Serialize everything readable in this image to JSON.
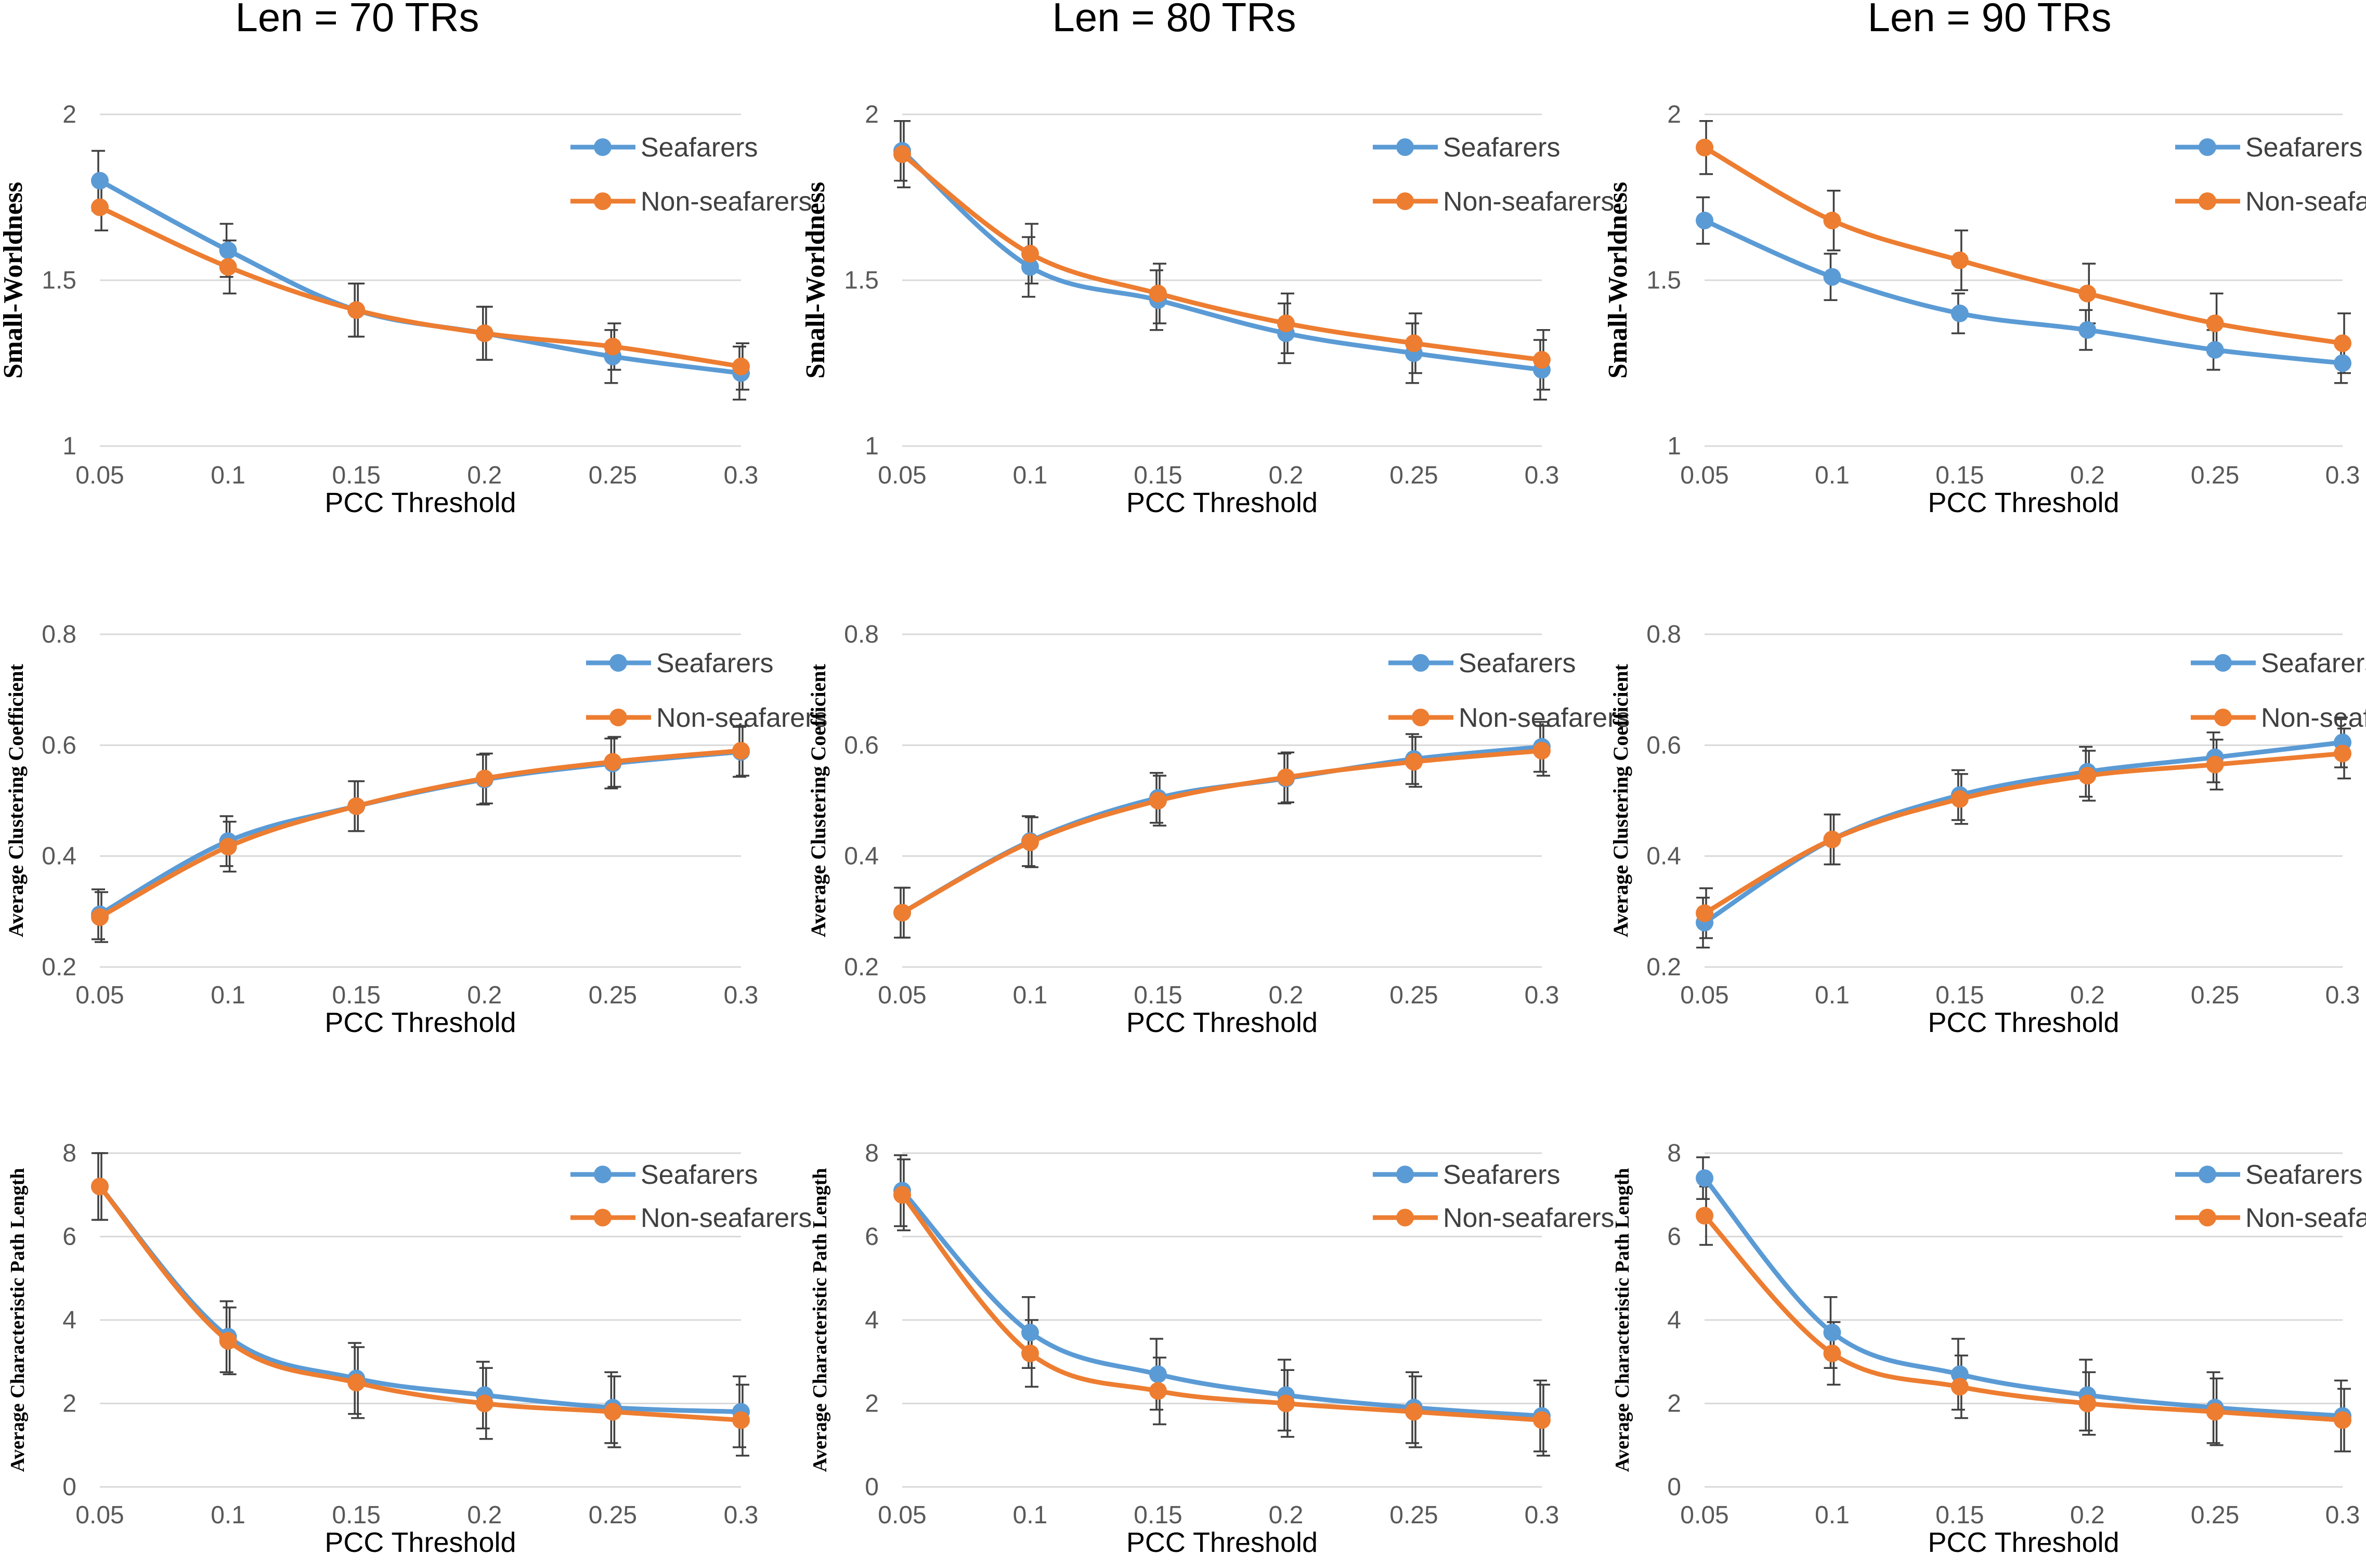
{
  "colors": {
    "seafarers": "#5B9BD5",
    "non_seafarers": "#ED7D31",
    "grid": "#D9D9D9",
    "errorbar": "#404040"
  },
  "column_titles": [
    "Len = 70 TRs",
    "Len = 80 TRs",
    "Len = 90 TRs"
  ],
  "chart_data": [
    {
      "type": "line",
      "title": "Len = 70 TRs",
      "xlabel": "PCC Threshold",
      "ylabel": "Small-Worldness",
      "x": [
        "0.05",
        "0.1",
        "0.15",
        "0.2",
        "0.25",
        "0.3"
      ],
      "ylim": [
        1,
        2
      ],
      "yticks": [
        "1",
        "1.5",
        "2"
      ],
      "grid": true,
      "legend": "top-right",
      "series": [
        {
          "name": "Seafarers",
          "values": [
            1.8,
            1.59,
            1.41,
            1.34,
            1.27,
            1.22
          ],
          "errors": [
            0.09,
            0.08,
            0.08,
            0.08,
            0.08,
            0.08
          ]
        },
        {
          "name": "Non-seafarers",
          "values": [
            1.72,
            1.54,
            1.41,
            1.34,
            1.3,
            1.24
          ],
          "errors": [
            0.07,
            0.08,
            0.08,
            0.08,
            0.07,
            0.07
          ]
        }
      ]
    },
    {
      "type": "line",
      "title": "Len = 80 TRs",
      "xlabel": "PCC Threshold",
      "ylabel": "Small-Worldness",
      "x": [
        "0.05",
        "0.1",
        "0.15",
        "0.2",
        "0.25",
        "0.3"
      ],
      "ylim": [
        1,
        2
      ],
      "yticks": [
        "1",
        "1.5",
        "2"
      ],
      "grid": true,
      "legend": "top-right",
      "series": [
        {
          "name": "Seafarers",
          "values": [
            1.89,
            1.54,
            1.44,
            1.34,
            1.28,
            1.23
          ],
          "errors": [
            0.09,
            0.09,
            0.09,
            0.09,
            0.09,
            0.09
          ]
        },
        {
          "name": "Non-seafarers",
          "values": [
            1.88,
            1.58,
            1.46,
            1.37,
            1.31,
            1.26
          ],
          "errors": [
            0.1,
            0.09,
            0.09,
            0.09,
            0.09,
            0.09
          ]
        }
      ]
    },
    {
      "type": "line",
      "title": "Len = 90 TRs",
      "xlabel": "PCC Threshold",
      "ylabel": "Small-Worldness",
      "x": [
        "0.05",
        "0.1",
        "0.15",
        "0.2",
        "0.25",
        "0.3"
      ],
      "ylim": [
        1,
        2
      ],
      "yticks": [
        "1",
        "1.5",
        "2"
      ],
      "grid": true,
      "legend": "top-right",
      "series": [
        {
          "name": "Seafarers",
          "values": [
            1.68,
            1.51,
            1.4,
            1.35,
            1.29,
            1.25
          ],
          "errors": [
            0.07,
            0.07,
            0.06,
            0.06,
            0.06,
            0.06
          ]
        },
        {
          "name": "Non-seafarers",
          "values": [
            1.9,
            1.68,
            1.56,
            1.46,
            1.37,
            1.31
          ],
          "errors": [
            0.08,
            0.09,
            0.09,
            0.09,
            0.09,
            0.09
          ]
        }
      ]
    },
    {
      "type": "line",
      "title": "Len = 70 TRs",
      "xlabel": "PCC Threshold",
      "ylabel": "Average Clustering Coefficient",
      "x": [
        "0.05",
        "0.1",
        "0.15",
        "0.2",
        "0.25",
        "0.3"
      ],
      "ylim": [
        0.2,
        0.8
      ],
      "yticks": [
        "0.2",
        "0.4",
        "0.6",
        "0.8"
      ],
      "grid": true,
      "legend": "top-right",
      "series": [
        {
          "name": "Seafarers",
          "values": [
            0.295,
            0.427,
            0.49,
            0.538,
            0.567,
            0.588
          ],
          "errors": [
            0.045,
            0.045,
            0.045,
            0.045,
            0.045,
            0.045
          ]
        },
        {
          "name": "Non-seafarers",
          "values": [
            0.29,
            0.417,
            0.49,
            0.54,
            0.57,
            0.59
          ],
          "errors": [
            0.045,
            0.045,
            0.045,
            0.045,
            0.045,
            0.045
          ]
        }
      ]
    },
    {
      "type": "line",
      "title": "Len = 80 TRs",
      "xlabel": "PCC Threshold",
      "ylabel": "Average Clustering Coefficient",
      "x": [
        "0.05",
        "0.1",
        "0.15",
        "0.2",
        "0.25",
        "0.3"
      ],
      "ylim": [
        0.2,
        0.8
      ],
      "yticks": [
        "0.2",
        "0.4",
        "0.6",
        "0.8"
      ],
      "grid": true,
      "legend": "top-right",
      "series": [
        {
          "name": "Seafarers",
          "values": [
            0.298,
            0.427,
            0.505,
            0.54,
            0.575,
            0.597
          ],
          "errors": [
            0.045,
            0.045,
            0.045,
            0.045,
            0.045,
            0.045
          ]
        },
        {
          "name": "Non-seafarers",
          "values": [
            0.298,
            0.425,
            0.5,
            0.542,
            0.57,
            0.59
          ],
          "errors": [
            0.045,
            0.045,
            0.045,
            0.045,
            0.045,
            0.045
          ]
        }
      ]
    },
    {
      "type": "line",
      "title": "Len = 90 TRs",
      "xlabel": "PCC Threshold",
      "ylabel": "Average Clustering Coefficient",
      "x": [
        "0.05",
        "0.1",
        "0.15",
        "0.2",
        "0.25",
        "0.3"
      ],
      "ylim": [
        0.2,
        0.8
      ],
      "yticks": [
        "0.2",
        "0.4",
        "0.6",
        "0.8"
      ],
      "grid": true,
      "legend": "top-right",
      "series": [
        {
          "name": "Seafarers",
          "values": [
            0.28,
            0.43,
            0.51,
            0.552,
            0.578,
            0.605
          ],
          "errors": [
            0.045,
            0.045,
            0.045,
            0.045,
            0.045,
            0.045
          ]
        },
        {
          "name": "Non-seafarers",
          "values": [
            0.297,
            0.43,
            0.503,
            0.545,
            0.565,
            0.585
          ],
          "errors": [
            0.045,
            0.045,
            0.045,
            0.045,
            0.045,
            0.045
          ]
        }
      ]
    },
    {
      "type": "line",
      "title": "Len = 70 TRs",
      "xlabel": "PCC Threshold",
      "ylabel": "Average Characteristic Path Length",
      "x": [
        "0.05",
        "0.1",
        "0.15",
        "0.2",
        "0.25",
        "0.3"
      ],
      "ylim": [
        0,
        8
      ],
      "yticks": [
        "0",
        "2",
        "4",
        "6",
        "8"
      ],
      "grid": true,
      "legend": "top-right",
      "series": [
        {
          "name": "Seafarers",
          "values": [
            7.2,
            3.6,
            2.6,
            2.2,
            1.9,
            1.8
          ],
          "errors": [
            0.8,
            0.85,
            0.85,
            0.8,
            0.85,
            0.85
          ]
        },
        {
          "name": "Non-seafarers",
          "values": [
            7.2,
            3.5,
            2.5,
            2.0,
            1.8,
            1.6
          ],
          "errors": [
            0.8,
            0.8,
            0.85,
            0.85,
            0.85,
            0.85
          ]
        }
      ]
    },
    {
      "type": "line",
      "title": "Len = 80 TRs",
      "xlabel": "PCC Threshold",
      "ylabel": "Average Characteristic Path Length",
      "x": [
        "0.05",
        "0.1",
        "0.15",
        "0.2",
        "0.25",
        "0.3"
      ],
      "ylim": [
        0,
        8
      ],
      "yticks": [
        "0",
        "2",
        "4",
        "6",
        "8"
      ],
      "grid": true,
      "legend": "top-right",
      "series": [
        {
          "name": "Seafarers",
          "values": [
            7.1,
            3.7,
            2.7,
            2.2,
            1.9,
            1.7
          ],
          "errors": [
            0.85,
            0.85,
            0.85,
            0.85,
            0.85,
            0.85
          ]
        },
        {
          "name": "Non-seafarers",
          "values": [
            7.0,
            3.2,
            2.3,
            2.0,
            1.8,
            1.6
          ],
          "errors": [
            0.85,
            0.8,
            0.8,
            0.8,
            0.85,
            0.85
          ]
        }
      ]
    },
    {
      "type": "line",
      "title": "Len = 90 TRs",
      "xlabel": "PCC Threshold",
      "ylabel": "Average Characteristic Path Length",
      "x": [
        "0.05",
        "0.1",
        "0.15",
        "0.2",
        "0.25",
        "0.3"
      ],
      "ylim": [
        0,
        8
      ],
      "yticks": [
        "0",
        "2",
        "4",
        "6",
        "8"
      ],
      "grid": true,
      "legend": "top-right",
      "series": [
        {
          "name": "Seafarers",
          "values": [
            7.4,
            3.7,
            2.7,
            2.2,
            1.9,
            1.7
          ],
          "errors": [
            0.5,
            0.85,
            0.85,
            0.85,
            0.85,
            0.85
          ]
        },
        {
          "name": "Non-seafarers",
          "values": [
            6.5,
            3.2,
            2.4,
            2.0,
            1.8,
            1.6
          ],
          "errors": [
            0.7,
            0.75,
            0.75,
            0.75,
            0.8,
            0.75
          ]
        }
      ]
    }
  ]
}
